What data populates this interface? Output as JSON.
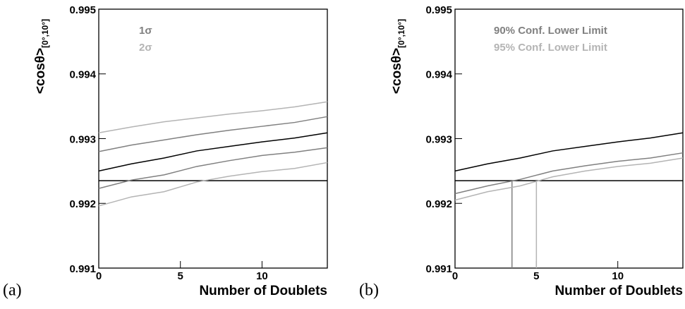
{
  "chart_data": [
    {
      "type": "line",
      "panel_label": "(a)",
      "xlabel": "Number of Doublets",
      "ylabel": "<cosθ>",
      "ylabel_sub": "[0°,10°]",
      "xlim": [
        0,
        14
      ],
      "ylim": [
        0.991,
        0.995
      ],
      "xticks": [
        0,
        5,
        10
      ],
      "yticks": [
        0.991,
        0.992,
        0.993,
        0.994,
        0.995
      ],
      "x": [
        0,
        2,
        4,
        6,
        8,
        10,
        12,
        14
      ],
      "hline": 0.99235,
      "series": [
        {
          "color": "#000000",
          "values": [
            0.9925,
            0.99261,
            0.9927,
            0.99281,
            0.99288,
            0.99295,
            0.99301,
            0.99309
          ]
        },
        {
          "name": "1σ",
          "color": "#808080",
          "upper": [
            0.9928,
            0.9929,
            0.99298,
            0.99306,
            0.99313,
            0.99319,
            0.99325,
            0.99334
          ],
          "lower": [
            0.99223,
            0.99236,
            0.99244,
            0.99257,
            0.99266,
            0.99274,
            0.99279,
            0.99286
          ]
        },
        {
          "name": "2σ",
          "color": "#b4b4b4",
          "upper": [
            0.99309,
            0.99318,
            0.99326,
            0.99332,
            0.99338,
            0.99343,
            0.99349,
            0.99357
          ],
          "lower": [
            0.99196,
            0.9921,
            0.99218,
            0.99233,
            0.99242,
            0.99249,
            0.99254,
            0.99263
          ]
        }
      ]
    },
    {
      "type": "line",
      "panel_label": "(b)",
      "xlabel": "Number of Doublets",
      "ylabel": "<cosθ>",
      "ylabel_sub": "[0°,10°]",
      "xlim": [
        0,
        14
      ],
      "ylim": [
        0.991,
        0.995
      ],
      "xticks": [
        0,
        5,
        10
      ],
      "yticks": [
        0.991,
        0.992,
        0.993,
        0.994,
        0.995
      ],
      "x": [
        0,
        2,
        4,
        6,
        8,
        10,
        12,
        14
      ],
      "hline": 0.99235,
      "series": [
        {
          "color": "#000000",
          "values": [
            0.9925,
            0.99261,
            0.9927,
            0.99281,
            0.99288,
            0.99295,
            0.99301,
            0.99309
          ]
        },
        {
          "name": "90% Conf. Lower Limit",
          "color": "#808080",
          "values": [
            0.99215,
            0.99227,
            0.99237,
            0.9925,
            0.99258,
            0.99265,
            0.9927,
            0.99278
          ],
          "limit_x": 3.5
        },
        {
          "name": "95% Conf. Lower Limit",
          "color": "#b4b4b4",
          "values": [
            0.99205,
            0.99218,
            0.99227,
            0.99241,
            0.9925,
            0.99257,
            0.99262,
            0.9927
          ],
          "limit_x": 5
        }
      ]
    }
  ]
}
